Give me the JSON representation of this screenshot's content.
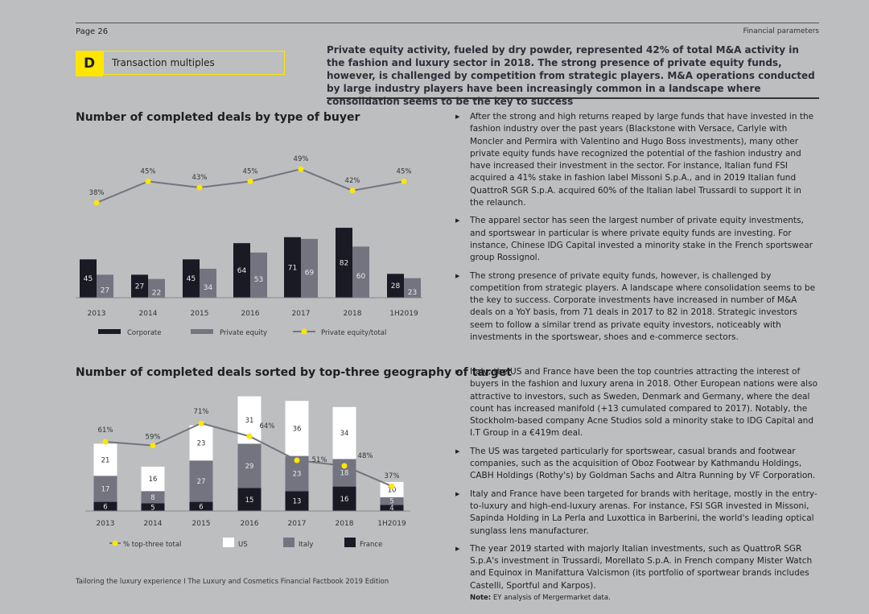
{
  "header": {
    "page_number": "Page 26",
    "section": "Financial parameters"
  },
  "section": {
    "letter": "D",
    "title": "Transaction multiples"
  },
  "lead": "Private equity activity, fueled by dry powder, represented 42% of total M&A activity in the fashion and luxury sector in 2018. The strong presence of private equity funds, however, is challenged by competition from strategic players. M&A operations conducted by large industry players have been increasingly common in a landscape where consolidation seems to be the key to success",
  "chart_data": [
    {
      "type": "bar",
      "title": "Number of completed deals by type of buyer",
      "categories": [
        "2013",
        "2014",
        "2015",
        "2016",
        "2017",
        "2018",
        "1H2019"
      ],
      "series": [
        {
          "name": "Corporate",
          "values": [
            45,
            27,
            45,
            64,
            71,
            82,
            28
          ],
          "color": "#1a1a24"
        },
        {
          "name": "Private equity",
          "values": [
            27,
            22,
            34,
            53,
            69,
            60,
            23
          ],
          "color": "#747480"
        },
        {
          "name": "Private equity/total",
          "type": "line",
          "values": [
            38,
            45,
            43,
            45,
            49,
            42,
            45
          ],
          "labels": [
            "38%",
            "45%",
            "43%",
            "45%",
            "49%",
            "42%",
            "45%"
          ],
          "color": "#ffe600"
        }
      ],
      "ylim": [
        0,
        95
      ]
    },
    {
      "type": "bar",
      "title": "Number of completed deals sorted by top-three geography of target",
      "categories": [
        "2013",
        "2014",
        "2015",
        "2016",
        "2017",
        "2018",
        "1H2019"
      ],
      "series": [
        {
          "name": "France",
          "values": [
            6,
            5,
            6,
            15,
            13,
            16,
            4
          ],
          "color": "#1a1a24"
        },
        {
          "name": "Italy",
          "values": [
            17,
            8,
            27,
            29,
            23,
            18,
            5
          ],
          "color": "#747480"
        },
        {
          "name": "US",
          "values": [
            21,
            16,
            23,
            31,
            36,
            34,
            10
          ],
          "color": "#ffffff"
        },
        {
          "name": "% top-three total",
          "type": "line",
          "values": [
            61,
            59,
            71,
            64,
            51,
            48,
            37
          ],
          "labels": [
            "61%",
            "59%",
            "71%",
            "64%",
            "51%",
            "48%",
            "37%"
          ],
          "color": "#ffe600"
        }
      ],
      "ylim": [
        0,
        95
      ]
    }
  ],
  "text1": [
    "After the strong and high returns reaped by large funds that have invested in the fashion industry over the past years (Blackstone with Versace, Carlyle with Moncler and Permira with Valentino and Hugo Boss investments), many other private equity funds have recognized the potential of the fashion industry and have increased their investment in the sector. For instance, Italian fund FSI acquired a 41% stake in fashion label Missoni S.p.A., and in 2019 Italian fund QuattroR SGR S.p.A. acquired 60% of the Italian label Trussardi to support it in the relaunch.",
    "The apparel sector has seen the largest number of private equity investments, and sportswear in particular is where private equity funds are investing. For instance, Chinese IDG Capital invested a minority stake in the French sportswear group Rossignol.",
    "The strong presence of private equity funds, however, is challenged by competition from strategic players. A landscape where consolidation seems to be the key to success. Corporate investments have increased in number of M&A deals on a YoY basis, from 71 deals in 2017 to 82 in 2018. Strategic investors seem to follow a similar trend as private equity investors, noticeably with investments in the sportswear, shoes and e-commerce sectors."
  ],
  "text2": [
    "Italy, the US and France have been the top countries attracting the interest of buyers in the fashion and luxury arena in 2018. Other European nations were also attractive to investors, such as Sweden, Denmark and Germany, where the deal count has increased manifold (+13 cumulated compared to 2017). Notably, the Stockholm-based company Acne Studios sold a minority stake to IDG Capital and I.T Group in a €419m deal.",
    "The US was targeted particularly for sportswear, casual brands and footwear companies, such as the acquisition of Oboz Footwear by Kathmandu Holdings, CABH Holdings (Rothy's) by Goldman Sachs and Altra Running by VF Corporation.",
    "Italy and France have been targeted for brands with heritage, mostly in the entry-to-luxury and high-end-luxury arenas. For instance, FSI SGR invested in Missoni, Sapinda Holding in La Perla and Luxottica in Barberini, the world's leading optical sunglass lens manufacturer.",
    "The year 2019 started with majorly Italian investments, such as QuattroR SGR S.p.A's investment in Trussardi, Morellato S.p.A. in French company Mister Watch and Equinox in Manifattura Valcismon (its portfolio of sportwear brands includes Castelli, Sportful and Karpos)."
  ],
  "note": {
    "label": "Note:",
    "text": " EY analysis of Mergermarket data."
  },
  "footer": "Tailoring the luxury experience I The Luxury and Cosmetics Financial Factbook 2019 Edition"
}
